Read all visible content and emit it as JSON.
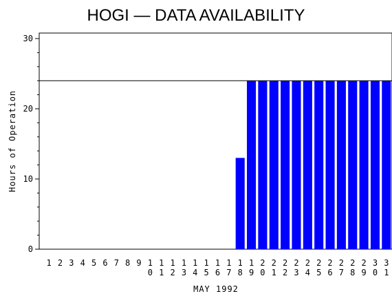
{
  "chart_data": {
    "type": "bar",
    "title": "HOGI — DATA AVAILABILITY",
    "xlabel": "MAY 1992",
    "ylabel": "Hours of Operation",
    "ylim": [
      0,
      30
    ],
    "yticks": [
      0,
      10,
      20,
      30
    ],
    "reference_line": 24,
    "grid": false,
    "legend": "none",
    "bar_color": "#0000ff",
    "categories": [
      "1",
      "2",
      "3",
      "4",
      "5",
      "6",
      "7",
      "8",
      "9",
      "10",
      "11",
      "12",
      "13",
      "14",
      "15",
      "16",
      "17",
      "18",
      "19",
      "20",
      "21",
      "22",
      "23",
      "24",
      "25",
      "26",
      "27",
      "28",
      "29",
      "30",
      "31"
    ],
    "values": [
      0,
      0,
      0,
      0,
      0,
      0,
      0,
      0,
      0,
      0,
      0,
      0,
      0,
      0,
      0,
      0,
      0,
      13,
      24,
      24,
      24,
      24,
      24,
      24,
      24,
      24,
      24,
      24,
      24,
      24,
      24
    ]
  }
}
